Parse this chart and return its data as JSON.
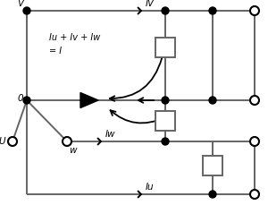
{
  "bg_color": "#ffffff",
  "line_color": "#646464",
  "dot_color": "#000000",
  "text_color": "#000000",
  "arrow_color": "#000000",
  "box_color": "#646464",
  "figsize": [
    3.0,
    2.29
  ],
  "dpi": 100,
  "annotation_text": "Iu + Iv + Iw\n= I",
  "label_V": "V",
  "label_O": "0",
  "label_U": "U",
  "label_W": "w",
  "label_IV": "IV",
  "label_Iw": "Iw",
  "label_Iu": "Iu"
}
